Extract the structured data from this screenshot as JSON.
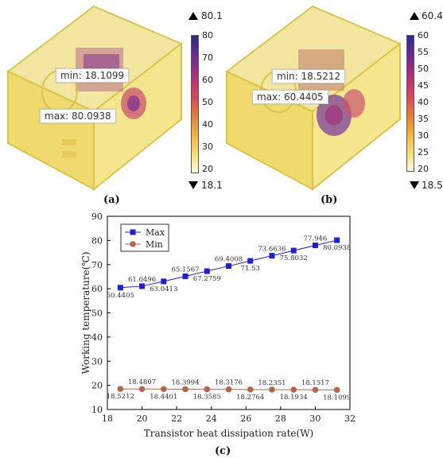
{
  "panel_a": {
    "label": "(a)",
    "min_text": "min: 18.1099",
    "max_text": "max: 80.0938",
    "cb_max": "80.1",
    "cb_min": "18.1",
    "cb_ticks": [
      "80",
      "70",
      "60",
      "50",
      "40",
      "30",
      "20"
    ]
  },
  "panel_b": {
    "label": "(b)",
    "min_text": "min: 18.5212",
    "max_text": "max: 60.4405",
    "cb_max": "60.4",
    "cb_min": "18.5",
    "cb_ticks": [
      "60",
      "55",
      "50",
      "45",
      "40",
      "35",
      "30",
      "25",
      "20"
    ]
  },
  "panel_c": {
    "label": "(c)"
  },
  "chart_data": {
    "type": "line",
    "xlabel": "Transistor heat dissipation rate(W)",
    "ylabel": "Working temperature(℃)",
    "xlim": [
      18,
      32
    ],
    "ylim": [
      10,
      90
    ],
    "xticks": [
      18,
      20,
      22,
      24,
      26,
      28,
      30,
      32
    ],
    "yticks": [
      10,
      20,
      30,
      40,
      50,
      60,
      70,
      80,
      90
    ],
    "legend_position": "top-left",
    "x": [
      18.75,
      20.0,
      21.25,
      22.5,
      23.75,
      25.0,
      26.25,
      27.5,
      28.75,
      30.0,
      31.25
    ],
    "series": [
      {
        "name": "Max",
        "color": "#1f1fd6",
        "marker": "square",
        "values": [
          60.4405,
          61.0496,
          63.0413,
          65.1567,
          67.2759,
          69.4008,
          71.53,
          73.6636,
          75.8032,
          77.946,
          80.0938
        ],
        "labels": [
          "60.4405",
          "61.0496",
          "63.0413",
          "65.1567",
          "67.2759",
          "69.4008",
          "71.53",
          "73.6636",
          "75.8032",
          "77.946",
          "80.0938"
        ]
      },
      {
        "name": "Min",
        "color": "#b5654a",
        "marker": "circle",
        "values": [
          18.5212,
          18.4807,
          18.4401,
          18.3994,
          18.3585,
          18.3176,
          18.2764,
          18.2351,
          18.1934,
          18.1517,
          18.1099
        ],
        "labels": [
          "18.5212",
          "18.4807",
          "18.4401",
          "18.3994",
          "18.3585",
          "18.3176",
          "18.2764",
          "18.2351",
          "18.1934",
          "18.1517",
          "18.1099"
        ]
      }
    ]
  }
}
